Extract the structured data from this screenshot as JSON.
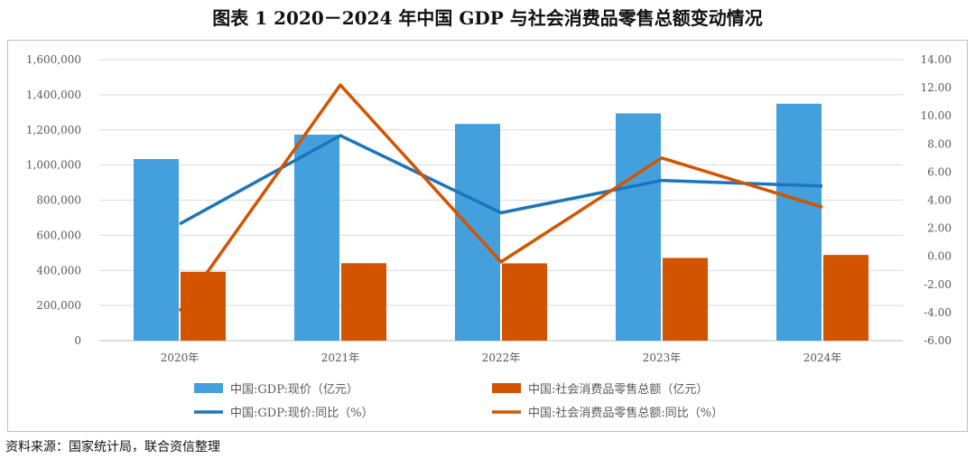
{
  "title": "图表 1    2020－2024 年中国 GDP 与社会消费品零售总额变动情况",
  "source": "资料来源：国家统计局，联合资信整理",
  "chart_data": {
    "type": "bar+line",
    "categories": [
      "2020年",
      "2021年",
      "2022年",
      "2023年",
      "2024年"
    ],
    "left_axis": {
      "ylim": [
        0,
        1600000
      ],
      "ticks": [
        "0",
        "200,000",
        "400,000",
        "600,000",
        "800,000",
        "1,000,000",
        "1,200,000",
        "1,400,000",
        "1,600,000"
      ]
    },
    "right_axis": {
      "ylim": [
        -6,
        14
      ],
      "ticks": [
        "-6.00",
        "-4.00",
        "-2.00",
        "0.00",
        "2.00",
        "4.00",
        "6.00",
        "8.00",
        "10.00",
        "12.00",
        "14.00"
      ]
    },
    "bar_series": [
      {
        "name": "中国:GDP:现价（亿元）",
        "color": "#449FDD",
        "values": [
          1034000,
          1173000,
          1234000,
          1294000,
          1349000
        ]
      },
      {
        "name": "中国:社会消费品零售总额（亿元）",
        "color": "#D35400",
        "values": [
          392000,
          441000,
          440000,
          471000,
          488000
        ]
      }
    ],
    "line_series": [
      {
        "name": "中国:GDP:现价:同比（%）",
        "color": "#1B75BC",
        "values": [
          2.3,
          8.6,
          3.1,
          5.4,
          5.0
        ]
      },
      {
        "name": "中国:社会消费品零售总额:同比（%）",
        "color": "#D35400",
        "values": [
          -3.9,
          12.2,
          -0.4,
          7.0,
          3.5
        ]
      }
    ],
    "grid": true,
    "legend_position": "bottom"
  }
}
